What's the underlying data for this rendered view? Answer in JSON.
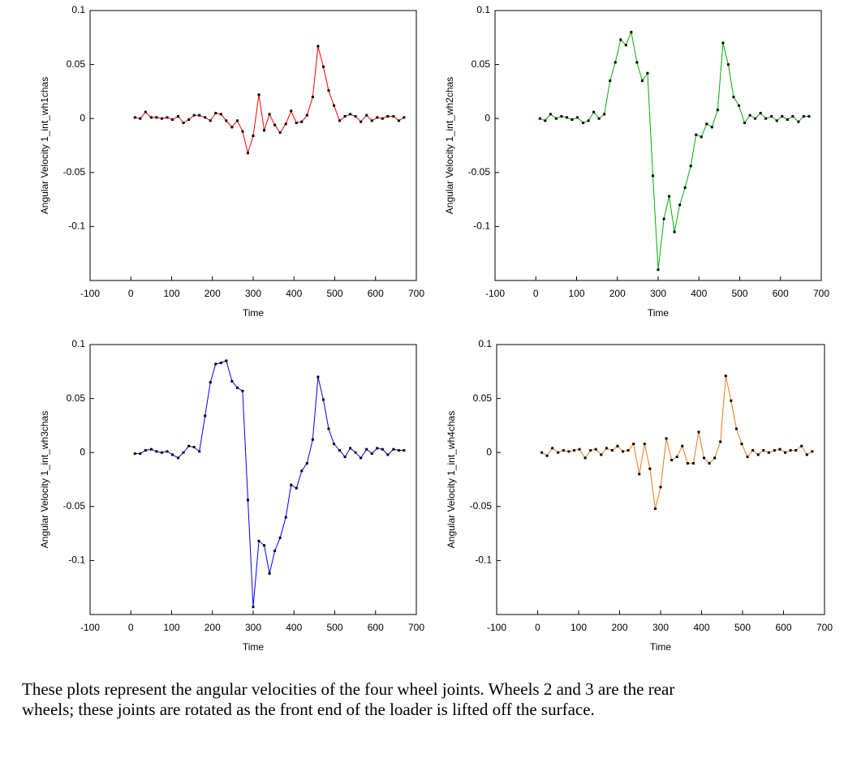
{
  "chart_data": [
    {
      "type": "line",
      "ylabel": "Angular Velocity 1_int_wh1chas",
      "xlabel": "Time",
      "color": "#ff0000",
      "x": [
        10,
        23,
        36,
        50,
        63,
        76,
        89,
        102,
        116,
        129,
        142,
        155,
        168,
        182,
        195,
        208,
        221,
        234,
        248,
        261,
        274,
        287,
        300,
        314,
        327,
        340,
        353,
        366,
        380,
        393,
        406,
        419,
        432,
        446,
        459,
        472,
        485,
        498,
        512,
        525,
        538,
        551,
        564,
        578,
        591,
        604,
        617,
        630,
        644,
        657,
        670
      ],
      "values": [
        0.001,
        0,
        0.006,
        0.001,
        0.001,
        0,
        0.001,
        -0.001,
        0.002,
        -0.004,
        -0.001,
        0.003,
        0.003,
        0.001,
        -0.002,
        0.005,
        0.004,
        -0.002,
        -0.008,
        -0.002,
        -0.012,
        -0.032,
        -0.016,
        0.022,
        -0.011,
        0.004,
        -0.006,
        -0.013,
        -0.005,
        0.007,
        -0.004,
        -0.003,
        0.003,
        0.02,
        0.067,
        0.048,
        0.026,
        0.012,
        -0.002,
        0.002,
        0.004,
        0.002,
        -0.003,
        0.003,
        -0.002,
        0.001,
        0,
        0.002,
        0.002,
        -0.002,
        0.001
      ],
      "xlim": [
        -100,
        700
      ],
      "ylim": [
        -0.15,
        0.1
      ],
      "xticks": [
        -100,
        0,
        100,
        200,
        300,
        400,
        500,
        600,
        700
      ],
      "yticks": [
        -0.1,
        -0.05,
        0,
        0.05,
        0.1
      ]
    },
    {
      "type": "line",
      "ylabel": "Angular Velocity 1_int_wh2chas",
      "xlabel": "Time",
      "color": "#00b000",
      "x": [
        10,
        23,
        36,
        50,
        63,
        76,
        89,
        102,
        116,
        129,
        142,
        155,
        168,
        182,
        195,
        208,
        221,
        234,
        248,
        261,
        274,
        287,
        300,
        314,
        327,
        340,
        353,
        366,
        380,
        393,
        406,
        419,
        432,
        446,
        459,
        472,
        485,
        498,
        512,
        525,
        538,
        551,
        564,
        578,
        591,
        604,
        617,
        630,
        644,
        657,
        670
      ],
      "values": [
        0,
        -0.002,
        0.004,
        0,
        0.002,
        0.001,
        -0.001,
        0.001,
        -0.004,
        -0.002,
        0.006,
        0,
        0.004,
        0.035,
        0.052,
        0.073,
        0.068,
        0.08,
        0.052,
        0.035,
        0.042,
        -0.053,
        -0.14,
        -0.093,
        -0.072,
        -0.105,
        -0.08,
        -0.064,
        -0.044,
        -0.015,
        -0.017,
        -0.005,
        -0.008,
        0.008,
        0.07,
        0.05,
        0.02,
        0.012,
        -0.004,
        0.003,
        0,
        0.005,
        0,
        0.002,
        -0.002,
        0.002,
        -0.001,
        0.002,
        -0.003,
        0.002,
        0.002
      ],
      "xlim": [
        -100,
        700
      ],
      "ylim": [
        -0.15,
        0.1
      ],
      "xticks": [
        -100,
        0,
        100,
        200,
        300,
        400,
        500,
        600,
        700
      ],
      "yticks": [
        -0.1,
        -0.05,
        0,
        0.05,
        0.1
      ]
    },
    {
      "type": "line",
      "ylabel": "Angular Velocity 1_int_wh3chas",
      "xlabel": "Time",
      "color": "#0000ff",
      "x": [
        10,
        23,
        36,
        50,
        63,
        76,
        89,
        102,
        116,
        129,
        142,
        155,
        168,
        182,
        195,
        208,
        221,
        234,
        248,
        261,
        274,
        287,
        300,
        314,
        327,
        340,
        353,
        366,
        380,
        393,
        406,
        419,
        432,
        446,
        459,
        472,
        485,
        498,
        512,
        525,
        538,
        551,
        564,
        578,
        591,
        604,
        617,
        630,
        644,
        657,
        670
      ],
      "values": [
        -0.001,
        -0.001,
        0.002,
        0.003,
        0.001,
        0,
        0.001,
        -0.002,
        -0.005,
        0,
        0.006,
        0.005,
        0.001,
        0.034,
        0.065,
        0.082,
        0.083,
        0.085,
        0.066,
        0.06,
        0.057,
        -0.044,
        -0.143,
        -0.082,
        -0.086,
        -0.112,
        -0.091,
        -0.079,
        -0.06,
        -0.03,
        -0.033,
        -0.017,
        -0.01,
        0.012,
        0.07,
        0.049,
        0.022,
        0.008,
        0.002,
        -0.004,
        0.004,
        0,
        -0.005,
        0.003,
        -0.001,
        0.004,
        0.003,
        -0.002,
        0.003,
        0.002,
        0.002
      ],
      "xlim": [
        -100,
        700
      ],
      "ylim": [
        -0.15,
        0.1
      ],
      "xticks": [
        -100,
        0,
        100,
        200,
        300,
        400,
        500,
        600,
        700
      ],
      "yticks": [
        -0.1,
        -0.05,
        0,
        0.05,
        0.1
      ]
    },
    {
      "type": "line",
      "ylabel": "Angular Velocity 1_int_wh4chas",
      "xlabel": "Time",
      "color": "#f07818",
      "x": [
        10,
        23,
        36,
        50,
        63,
        76,
        89,
        102,
        116,
        129,
        142,
        155,
        168,
        182,
        195,
        208,
        221,
        234,
        248,
        261,
        274,
        287,
        300,
        314,
        327,
        340,
        353,
        366,
        380,
        393,
        406,
        419,
        432,
        446,
        459,
        472,
        485,
        498,
        512,
        525,
        538,
        551,
        564,
        578,
        591,
        604,
        617,
        630,
        644,
        657,
        670
      ],
      "values": [
        0,
        -0.003,
        0.004,
        0,
        0.002,
        0.001,
        0.002,
        0.003,
        -0.005,
        0.002,
        0.003,
        -0.002,
        0.004,
        0.002,
        0.006,
        0.001,
        0.002,
        0.008,
        -0.02,
        0.008,
        -0.015,
        -0.052,
        -0.032,
        0.013,
        -0.007,
        -0.004,
        0.006,
        -0.01,
        -0.01,
        0.019,
        -0.005,
        -0.01,
        -0.005,
        0.01,
        0.071,
        0.048,
        0.022,
        0.008,
        -0.004,
        0.002,
        -0.002,
        0.002,
        0,
        0.002,
        0.003,
        0,
        0.002,
        0.002,
        0.006,
        -0.002,
        0.001
      ],
      "xlim": [
        -100,
        700
      ],
      "ylim": [
        -0.15,
        0.1
      ],
      "xticks": [
        -100,
        0,
        100,
        200,
        300,
        400,
        500,
        600,
        700
      ],
      "yticks": [
        -0.1,
        -0.05,
        0,
        0.05,
        0.1
      ]
    }
  ],
  "caption": "These plots represent the angular velocities of the four wheel joints.  Wheels 2 and 3 are the rear wheels; these joints are rotated as the front end of the loader is lifted off the surface."
}
